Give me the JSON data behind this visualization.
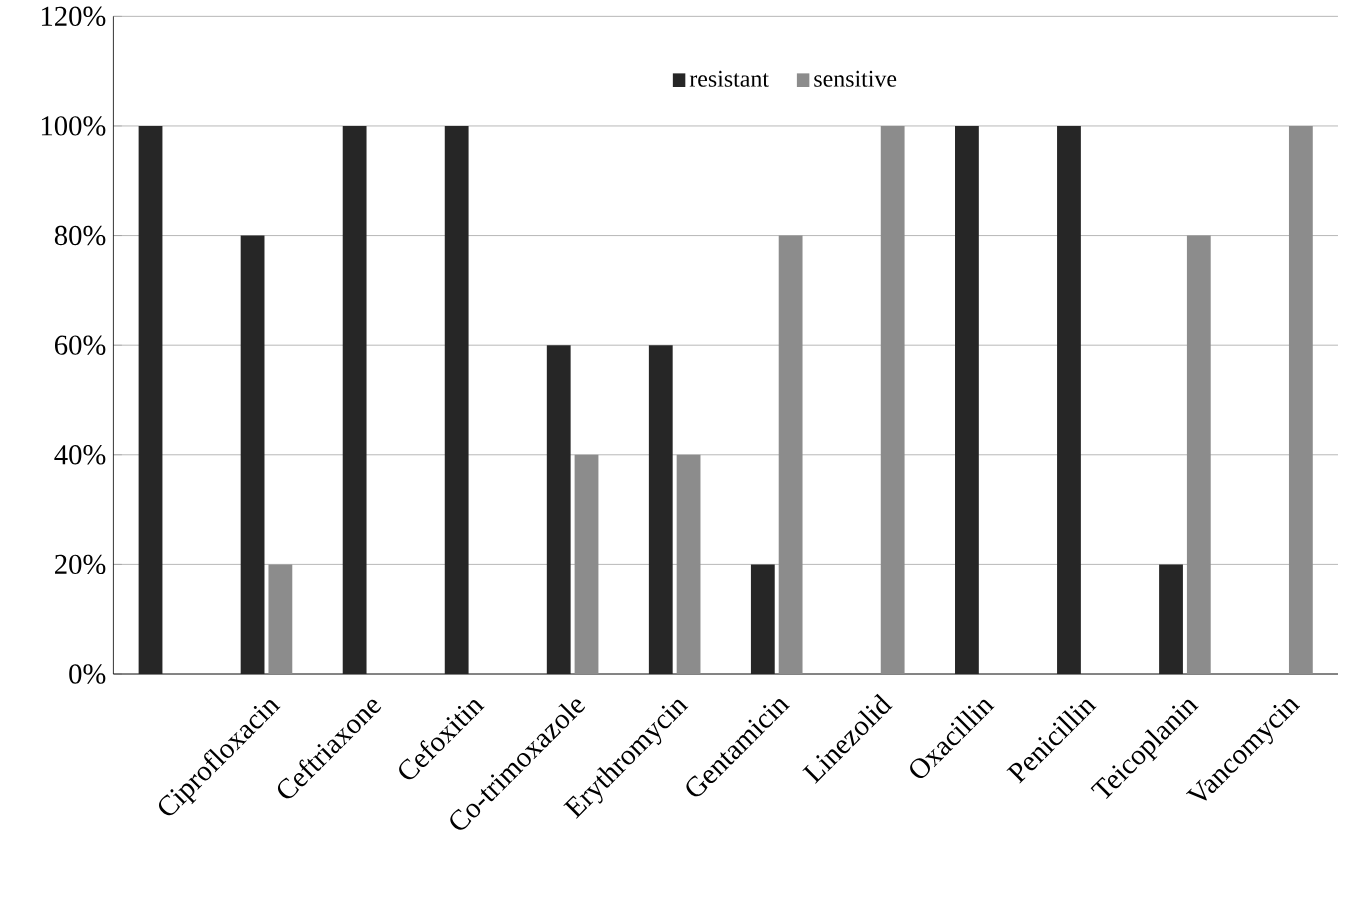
{
  "chart_data": {
    "type": "bar",
    "categories": [
      null,
      "Ciprofloxacin",
      "Ceftriaxone",
      "Cefoxitin",
      "Co-trimoxazole",
      "Erythromycin",
      "Gentamicin",
      "Linezolid",
      "Oxacillin",
      "Penicillin",
      "Teicoplanin",
      "Vancomycin"
    ],
    "series": [
      {
        "name": "resistant",
        "color": "#262626",
        "values": [
          100,
          80,
          100,
          100,
          60,
          60,
          20,
          0,
          100,
          100,
          20,
          0
        ]
      },
      {
        "name": "sensitive",
        "color": "#8c8c8c",
        "values": [
          0,
          20,
          0,
          0,
          40,
          40,
          80,
          100,
          0,
          0,
          80,
          100
        ]
      }
    ],
    "ylim": [
      0,
      120
    ],
    "yticks": [
      {
        "value": 0,
        "label": "0%"
      },
      {
        "value": 20,
        "label": "20%"
      },
      {
        "value": 40,
        "label": "40%"
      },
      {
        "value": 60,
        "label": "60%"
      },
      {
        "value": 80,
        "label": "80%"
      },
      {
        "value": 100,
        "label": "100%"
      },
      {
        "value": 120,
        "label": "120%"
      }
    ],
    "grid": "y",
    "legend": "top"
  }
}
